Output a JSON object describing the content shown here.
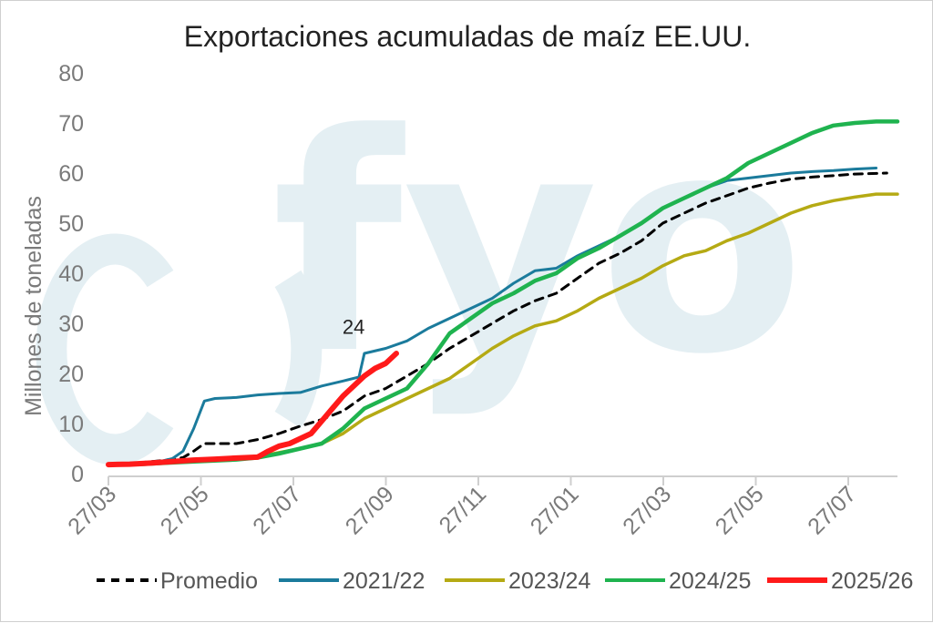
{
  "chart_data": {
    "type": "line",
    "title": "Exportaciones acumuladas de maíz EE.UU.",
    "ylabel": "Millones de toneladas",
    "xlabel": "",
    "ylim": [
      0,
      80
    ],
    "yticks": [
      0,
      10,
      20,
      30,
      40,
      50,
      60,
      70,
      80
    ],
    "xticks": [
      "27/03",
      "27/05",
      "27/07",
      "27/09",
      "27/11",
      "27/01",
      "27/03",
      "27/05",
      "27/07"
    ],
    "x_unit": "weeks since 27/03",
    "x_range": [
      0,
      74
    ],
    "grid": false,
    "legend_position": "bottom",
    "annotation": {
      "text": "24",
      "x": 23,
      "y": 26.5
    },
    "watermark": "fyo",
    "series": [
      {
        "name": "Promedio",
        "color": "#000000",
        "style": "dashed",
        "points": [
          [
            0,
            1.8
          ],
          [
            3,
            2.2
          ],
          [
            5,
            2.6
          ],
          [
            7,
            3.2
          ],
          [
            8,
            4.5
          ],
          [
            9,
            6
          ],
          [
            12,
            6
          ],
          [
            14,
            6.8
          ],
          [
            16,
            8
          ],
          [
            18,
            9.5
          ],
          [
            20,
            10.8
          ],
          [
            22,
            12.5
          ],
          [
            24,
            15.5
          ],
          [
            26,
            17
          ],
          [
            28,
            19.5
          ],
          [
            30,
            22
          ],
          [
            32,
            25
          ],
          [
            34,
            27.5
          ],
          [
            36,
            30
          ],
          [
            38,
            32.5
          ],
          [
            40,
            34.5
          ],
          [
            42,
            36
          ],
          [
            44,
            39
          ],
          [
            46,
            42
          ],
          [
            48,
            44
          ],
          [
            50,
            46.5
          ],
          [
            52,
            50
          ],
          [
            54,
            52
          ],
          [
            56,
            54
          ],
          [
            58,
            55.5
          ],
          [
            60,
            57
          ],
          [
            62,
            58
          ],
          [
            64,
            58.8
          ],
          [
            66,
            59.2
          ],
          [
            68,
            59.5
          ],
          [
            70,
            59.8
          ],
          [
            73,
            60
          ]
        ]
      },
      {
        "name": "2021/22",
        "color": "#1b7b9c",
        "style": "solid",
        "points": [
          [
            0,
            1.8
          ],
          [
            4,
            2
          ],
          [
            6,
            3
          ],
          [
            7,
            4.5
          ],
          [
            8,
            9
          ],
          [
            9,
            14.5
          ],
          [
            10,
            15
          ],
          [
            12,
            15.2
          ],
          [
            14,
            15.7
          ],
          [
            16,
            16
          ],
          [
            18,
            16.2
          ],
          [
            20,
            17.5
          ],
          [
            22,
            18.5
          ],
          [
            23.5,
            19.3
          ],
          [
            24,
            24
          ],
          [
            26,
            25
          ],
          [
            28,
            26.5
          ],
          [
            30,
            29
          ],
          [
            32,
            31
          ],
          [
            34,
            33
          ],
          [
            36,
            35
          ],
          [
            38,
            38
          ],
          [
            40,
            40.5
          ],
          [
            42,
            41
          ],
          [
            44,
            43.5
          ],
          [
            46,
            45.5
          ],
          [
            48,
            47.5
          ],
          [
            50,
            50
          ],
          [
            52,
            53
          ],
          [
            54,
            55
          ],
          [
            56,
            57
          ],
          [
            58,
            58.5
          ],
          [
            60,
            59
          ],
          [
            62,
            59.5
          ],
          [
            64,
            60
          ],
          [
            66,
            60.3
          ],
          [
            68,
            60.5
          ],
          [
            70,
            60.8
          ],
          [
            72,
            61
          ]
        ]
      },
      {
        "name": "2023/24",
        "color": "#b5aa14",
        "style": "solid",
        "points": [
          [
            0,
            1.8
          ],
          [
            3,
            2
          ],
          [
            6,
            2.3
          ],
          [
            9,
            2.6
          ],
          [
            12,
            3
          ],
          [
            15,
            3.8
          ],
          [
            18,
            5
          ],
          [
            20,
            6
          ],
          [
            22,
            8
          ],
          [
            24,
            11
          ],
          [
            26,
            13
          ],
          [
            28,
            15
          ],
          [
            30,
            17
          ],
          [
            32,
            19
          ],
          [
            34,
            22
          ],
          [
            36,
            25
          ],
          [
            38,
            27.5
          ],
          [
            40,
            29.5
          ],
          [
            42,
            30.5
          ],
          [
            44,
            32.5
          ],
          [
            46,
            35
          ],
          [
            48,
            37
          ],
          [
            50,
            39
          ],
          [
            52,
            41.5
          ],
          [
            54,
            43.5
          ],
          [
            56,
            44.5
          ],
          [
            58,
            46.5
          ],
          [
            60,
            48
          ],
          [
            62,
            50
          ],
          [
            64,
            52
          ],
          [
            66,
            53.5
          ],
          [
            68,
            54.5
          ],
          [
            70,
            55.2
          ],
          [
            72,
            55.8
          ],
          [
            74,
            55.8
          ]
        ]
      },
      {
        "name": "2024/25",
        "color": "#1fb34f",
        "style": "solid",
        "points": [
          [
            0,
            1.8
          ],
          [
            3,
            1.9
          ],
          [
            6,
            2.2
          ],
          [
            9,
            2.5
          ],
          [
            12,
            2.8
          ],
          [
            14,
            3.2
          ],
          [
            16,
            4
          ],
          [
            18,
            5
          ],
          [
            20,
            6
          ],
          [
            22,
            9
          ],
          [
            24,
            13
          ],
          [
            26,
            15
          ],
          [
            28,
            17
          ],
          [
            30,
            22
          ],
          [
            32,
            28
          ],
          [
            34,
            31
          ],
          [
            36,
            34
          ],
          [
            38,
            36
          ],
          [
            40,
            38.5
          ],
          [
            42,
            40
          ],
          [
            44,
            43
          ],
          [
            46,
            45
          ],
          [
            48,
            47.5
          ],
          [
            50,
            50
          ],
          [
            52,
            53
          ],
          [
            54,
            55
          ],
          [
            56,
            57
          ],
          [
            58,
            59
          ],
          [
            60,
            62
          ],
          [
            62,
            64
          ],
          [
            64,
            66
          ],
          [
            66,
            68
          ],
          [
            68,
            69.5
          ],
          [
            70,
            70
          ],
          [
            72,
            70.3
          ],
          [
            74,
            70.3
          ]
        ]
      },
      {
        "name": "2025/26",
        "color": "#ff1a1a",
        "style": "solid",
        "points": [
          [
            0,
            1.8
          ],
          [
            2,
            1.9
          ],
          [
            4,
            2.1
          ],
          [
            6,
            2.4
          ],
          [
            8,
            2.7
          ],
          [
            10,
            2.9
          ],
          [
            12,
            3.1
          ],
          [
            14,
            3.3
          ],
          [
            15,
            4.5
          ],
          [
            16,
            5.5
          ],
          [
            17,
            6
          ],
          [
            18,
            7
          ],
          [
            19,
            8
          ],
          [
            20,
            10.5
          ],
          [
            21,
            13
          ],
          [
            22,
            15.5
          ],
          [
            23,
            17.5
          ],
          [
            24,
            19.5
          ],
          [
            25,
            21
          ],
          [
            26,
            22
          ],
          [
            27,
            24
          ]
        ]
      }
    ]
  }
}
